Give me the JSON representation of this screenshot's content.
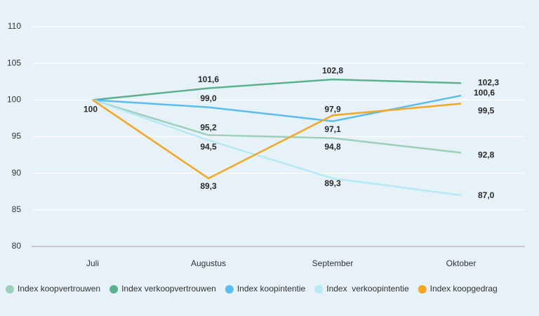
{
  "chart_data": {
    "type": "line",
    "categories": [
      "Juli",
      "Augustus",
      "September",
      "Oktober"
    ],
    "ylim": [
      80,
      110
    ],
    "yticks": [
      80,
      85,
      90,
      95,
      100,
      105,
      110
    ],
    "grid": true,
    "legend": "bottom",
    "series": [
      {
        "name": "Index koopvertrouwen",
        "color": "#9dd0bb",
        "values": [
          100,
          95.2,
          94.8,
          92.8
        ],
        "value_labels": [
          null,
          "95,2",
          "94,8",
          "92,8"
        ]
      },
      {
        "name": "Index verkoopvertrouwen",
        "color": "#5cb08e",
        "values": [
          100,
          101.6,
          102.8,
          102.3
        ],
        "value_labels": [
          null,
          "101,6",
          "102,8",
          "102,3"
        ]
      },
      {
        "name": "Index koopintentie",
        "color": "#5bbcf0",
        "values": [
          100,
          99.0,
          97.1,
          100.6
        ],
        "value_labels": [
          null,
          "99,0",
          "97,1",
          "100,6"
        ]
      },
      {
        "name": "Index  verkoopintentie",
        "color": "#b5e9f6",
        "values": [
          100,
          94.5,
          89.3,
          87.0
        ],
        "value_labels": [
          null,
          "94,5",
          "89,3",
          "87,0"
        ]
      },
      {
        "name": "Index koopgedrag",
        "color": "#f5a623",
        "values": [
          100,
          89.3,
          97.9,
          99.5
        ],
        "value_labels": [
          "100",
          "89,3",
          "97,9",
          "99,5"
        ]
      }
    ]
  }
}
